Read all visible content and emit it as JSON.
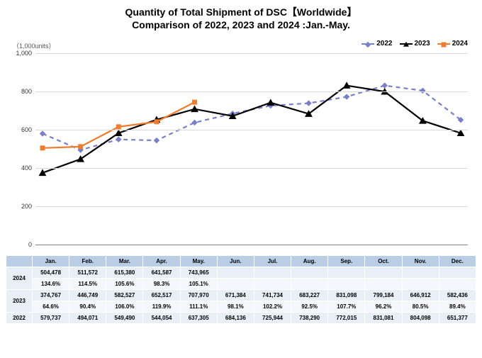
{
  "title_line1": "Quantity of Total Shipment of DSC【Worldwide】",
  "title_line2": "Comparison of 2022, 2023 and 2024 :Jan.-May.",
  "y_axis_unit": "（1,000units）",
  "chart": {
    "type": "line",
    "ylim": [
      0,
      1000
    ],
    "ytick_step": 200,
    "yticks": [
      "0",
      "200",
      "400",
      "600",
      "800",
      "1,000"
    ],
    "grid_color": "#d9d9d9",
    "axis_color": "#808080",
    "background_color": "#ffffff",
    "months": [
      "Jan.",
      "Feb.",
      "Mar.",
      "Apr.",
      "May.",
      "Jun.",
      "Jul.",
      "Aug.",
      "Sep.",
      "Oct.",
      "Nov.",
      "Dec."
    ],
    "series": [
      {
        "name": "2022",
        "color": "#7a80c8",
        "dash": "6,5",
        "marker": "diamond",
        "marker_size": 6,
        "values": [
          579.737,
          494.071,
          549.49,
          544.054,
          637.305,
          684.136,
          725.944,
          738.29,
          772.015,
          831.081,
          804.098,
          651.377
        ]
      },
      {
        "name": "2023",
        "color": "#000000",
        "dash": "",
        "marker": "triangle",
        "marker_size": 7,
        "values": [
          374.767,
          446.749,
          582.527,
          652.517,
          707.97,
          671.384,
          741.734,
          683.227,
          831.098,
          799.184,
          646.912,
          582.436
        ]
      },
      {
        "name": "2024",
        "color": "#ed7d31",
        "dash": "",
        "marker": "square",
        "marker_size": 7,
        "values": [
          504.478,
          511.572,
          615.38,
          641.587,
          743.965
        ]
      }
    ]
  },
  "legend_items": [
    {
      "label": "2022"
    },
    {
      "label": "2023"
    },
    {
      "label": "2024"
    }
  ],
  "table": {
    "header_bg": "#b9cde5",
    "row_bg": "#e9eff7",
    "columns": [
      "Jan.",
      "Feb.",
      "Mar.",
      "Apr.",
      "May.",
      "Jun.",
      "Jul.",
      "Aug.",
      "Sep.",
      "Oct.",
      "Nov.",
      "Dec."
    ],
    "rows": [
      {
        "head": "2024",
        "vals": [
          "504,478",
          "511,572",
          "615,380",
          "641,587",
          "743,965",
          "",
          "",
          "",
          "",
          "",
          "",
          ""
        ],
        "alt": false,
        "rowspan": 2
      },
      {
        "head": "",
        "vals": [
          "134.6%",
          "114.5%",
          "105.6%",
          "98.3%",
          "105.1%",
          "",
          "",
          "",
          "",
          "",
          "",
          ""
        ],
        "alt": true
      },
      {
        "head": "2023",
        "vals": [
          "374,767",
          "446,749",
          "582,527",
          "652,517",
          "707,970",
          "671,384",
          "741,734",
          "683,227",
          "831,098",
          "799,184",
          "646,912",
          "582,436"
        ],
        "alt": false,
        "rowspan": 2
      },
      {
        "head": "",
        "vals": [
          "64.6%",
          "90.4%",
          "106.0%",
          "119.9%",
          "111.1%",
          "98.1%",
          "102.2%",
          "92.5%",
          "107.7%",
          "96.2%",
          "80.5%",
          "89.4%"
        ],
        "alt": true
      },
      {
        "head": "2022",
        "vals": [
          "579,737",
          "494,071",
          "549,490",
          "544,054",
          "637,305",
          "684,136",
          "725,944",
          "738,290",
          "772,015",
          "831,081",
          "804,098",
          "651,377"
        ],
        "alt": false,
        "rowspan": 1
      }
    ]
  }
}
